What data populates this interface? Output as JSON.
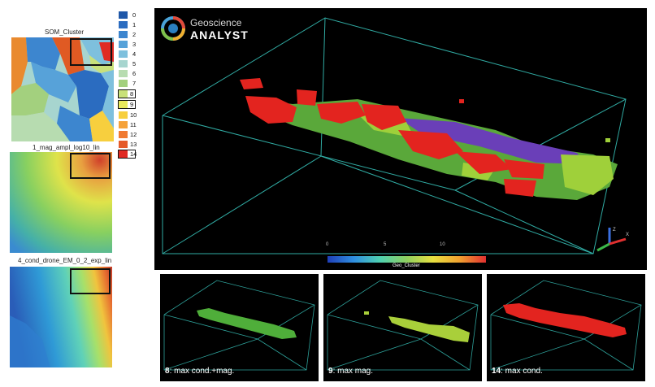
{
  "maps": [
    {
      "title": "SOM_Cluster"
    },
    {
      "title": "1_mag_ampl_log10_lin"
    },
    {
      "title": "4_cond_drone_EM_0_2_exp_lin"
    }
  ],
  "legend": {
    "items": [
      {
        "label": "0",
        "color": "#1f57a8"
      },
      {
        "label": "1",
        "color": "#2b6cc0"
      },
      {
        "label": "2",
        "color": "#3d86cf"
      },
      {
        "label": "3",
        "color": "#57a2d9"
      },
      {
        "label": "4",
        "color": "#7ec0dd"
      },
      {
        "label": "5",
        "color": "#a7d5cf"
      },
      {
        "label": "6",
        "color": "#b7dcb0"
      },
      {
        "label": "7",
        "color": "#a3d07e"
      },
      {
        "label": "8",
        "color": "#c9e17a"
      },
      {
        "label": "9",
        "color": "#e9ea5c"
      },
      {
        "label": "10",
        "color": "#f7cf3e"
      },
      {
        "label": "11",
        "color": "#f5a23a"
      },
      {
        "label": "12",
        "color": "#f07a32"
      },
      {
        "label": "13",
        "color": "#e55a2a"
      },
      {
        "label": "14",
        "color": "#e02a23"
      }
    ],
    "highlighted": [
      "8",
      "9",
      "14"
    ]
  },
  "viewer": {
    "brand_line1": "Geoscience",
    "brand_line2": "ANALYST",
    "colorbar": {
      "ticks": [
        "0",
        "5",
        "10"
      ],
      "label": "Geo_Cluster"
    }
  },
  "panels": [
    {
      "num": "8",
      "text": ": max cond.+mag.",
      "color": "#4fae3a"
    },
    {
      "num": "9",
      "text": ": max mag.",
      "color": "#a9cf3a"
    },
    {
      "num": "14",
      "text": ": max cond.",
      "color": "#e3241f"
    }
  ]
}
